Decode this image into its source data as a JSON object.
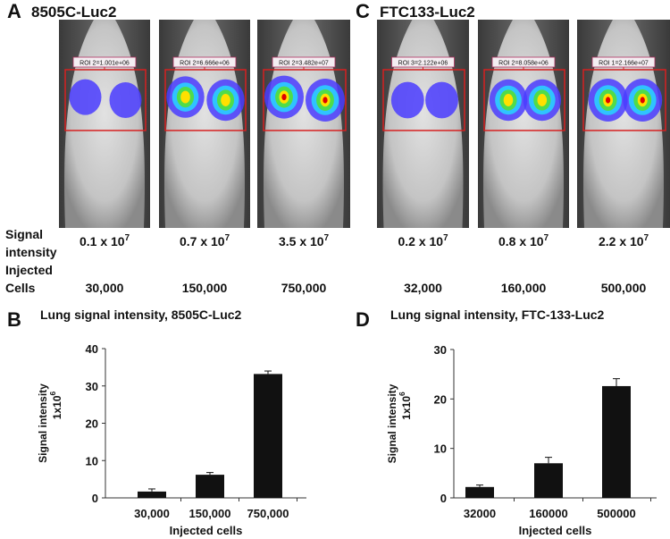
{
  "panels": [
    {
      "letter": "A",
      "title": "8505C-Luc2",
      "rois": [
        "ROI 2=1.001e+06",
        "ROI 2=6.666e+06",
        "ROI 2=3.482e+07"
      ],
      "signal": [
        {
          "base": "0.1 x 10",
          "exponent": "7"
        },
        {
          "base": "0.7 x 10",
          "exponent": "7"
        },
        {
          "base": "3.5 x 10",
          "exponent": "7"
        }
      ],
      "cells": [
        "30,000",
        "150,000",
        "750,000"
      ]
    },
    {
      "letter": "C",
      "title": "FTC133-Luc2",
      "rois": [
        "ROI 3=2.122e+06",
        "ROI 2=8.058e+06",
        "ROI 1=2.166e+07"
      ],
      "signal": [
        {
          "base": "0.2 x 10",
          "exponent": "7"
        },
        {
          "base": "0.8 x 10",
          "exponent": "7"
        },
        {
          "base": "2.2 x 10",
          "exponent": "7"
        }
      ],
      "cells": [
        "32,000",
        "160,000",
        "500,000"
      ]
    }
  ],
  "row_labels": {
    "signal": [
      "Signal",
      "intensity"
    ],
    "cells": [
      "Injected",
      "Cells"
    ]
  },
  "chart_data": [
    {
      "type": "bar",
      "panel": "B",
      "title": "Lung signal intensity, 8505C-Luc2",
      "ylabel": "Signal intensity",
      "ylabel_unit": {
        "base": "1x10",
        "exponent": "6"
      },
      "xlabel": "Injected cells",
      "categories": [
        "30,000",
        "150,000",
        "750,000"
      ],
      "values": [
        1.7,
        6.2,
        33.2
      ],
      "errors": [
        0.7,
        0.6,
        0.8
      ],
      "color": "#111111",
      "ylim": [
        0,
        40
      ],
      "yticks": [
        0,
        10,
        20,
        30,
        40
      ]
    },
    {
      "type": "bar",
      "panel": "D",
      "title": "Lung signal intensity, FTC-133-Luc2",
      "ylabel": "Signal intensity",
      "ylabel_unit": {
        "base": "1x10",
        "exponent": "6"
      },
      "xlabel": "Injected cells",
      "categories": [
        "32000",
        "160000",
        "500000"
      ],
      "values": [
        2.2,
        7.0,
        22.6
      ],
      "errors": [
        0.4,
        1.2,
        1.5
      ],
      "color": "#111111",
      "ylim": [
        0,
        30
      ],
      "yticks": [
        0,
        10,
        20,
        30
      ]
    }
  ]
}
